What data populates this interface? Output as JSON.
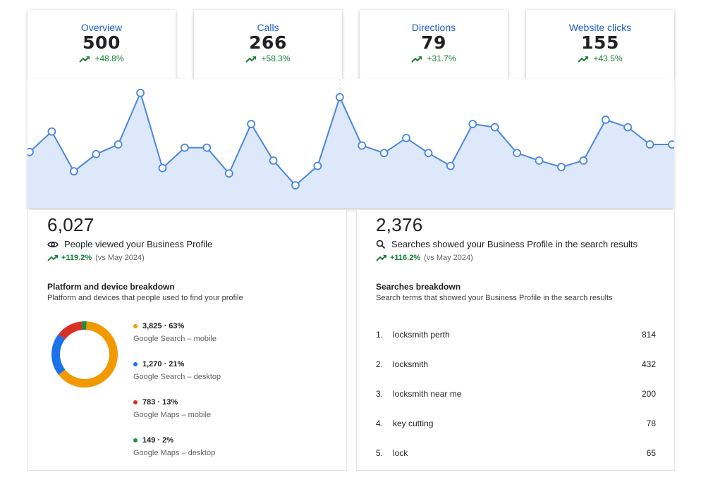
{
  "metrics": [
    {
      "label": "Overview",
      "value": "500",
      "change": "+48.8%"
    },
    {
      "label": "Calls",
      "value": "266",
      "change": "+58.3%"
    },
    {
      "label": "Directions",
      "value": "79",
      "change": "+31.7%"
    },
    {
      "label": "Website clicks",
      "value": "155",
      "change": "+43.5%"
    }
  ],
  "chart_data": {
    "type": "area",
    "y": [
      52,
      71,
      34,
      50,
      59,
      107,
      37,
      56,
      56,
      32,
      78,
      44,
      21,
      39,
      103,
      58,
      51,
      65,
      51,
      39,
      78,
      75,
      51,
      44,
      38,
      44,
      82,
      75,
      59,
      59
    ],
    "ylim": [
      0,
      120
    ],
    "colors": {
      "line": "#4a86de",
      "fill": "#dde9fa",
      "marker_fill": "#ffffff"
    }
  },
  "views": {
    "total": "6,027",
    "description": "People viewed your Business Profile",
    "change": "+119.2%",
    "comparison": "(vs May 2024)",
    "breakdown_title": "Platform and device breakdown",
    "breakdown_subtitle": "Platform and devices that people used to find your profile",
    "platforms": [
      {
        "value_text": "3,825 · 63%",
        "label": "Google Search – mobile",
        "value": 3825,
        "color": "#f29900"
      },
      {
        "value_text": "1,270 · 21%",
        "label": "Google Search – desktop",
        "value": 1270,
        "color": "#1a73e8"
      },
      {
        "value_text": "783 · 13%",
        "label": "Google Maps – mobile",
        "value": 783,
        "color": "#d93025"
      },
      {
        "value_text": "149 · 2%",
        "label": "Google Maps – desktop",
        "value": 149,
        "color": "#1e8e3e"
      }
    ]
  },
  "searches": {
    "total": "2,376",
    "description": "Searches showed your Business Profile in the search results",
    "change": "+116.2%",
    "comparison": "(vs May 2024)",
    "breakdown_title": "Searches breakdown",
    "breakdown_subtitle": "Search terms that showed your Business Profile in the search results",
    "terms": [
      {
        "rank": "1.",
        "term": "locksmith perth",
        "count": "814"
      },
      {
        "rank": "2.",
        "term": "locksmith",
        "count": "432"
      },
      {
        "rank": "3.",
        "term": "locksmith near me",
        "count": "200"
      },
      {
        "rank": "4.",
        "term": "key cutting",
        "count": "78"
      },
      {
        "rank": "5.",
        "term": "lock",
        "count": "65"
      }
    ]
  }
}
